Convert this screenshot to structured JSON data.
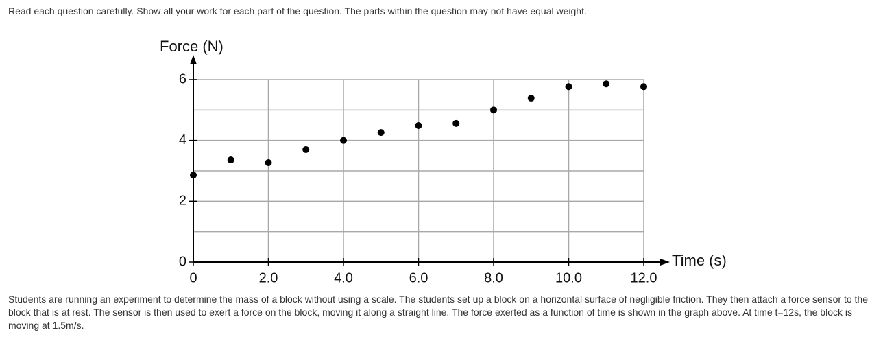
{
  "instructions": "Read each question carefully. Show all your work for each part of the question. The parts within the question may not have equal weight.",
  "chart_data": {
    "type": "scatter",
    "y_label": "Force (N)",
    "x_label": "Time (s)",
    "x": [
      0,
      1,
      2,
      3,
      4,
      5,
      6,
      7,
      8,
      9,
      10,
      11,
      12
    ],
    "values": [
      2.86,
      3.36,
      3.27,
      3.7,
      4.0,
      4.26,
      4.49,
      4.56,
      5.0,
      5.39,
      5.77,
      5.86,
      5.77
    ],
    "color": "#000000",
    "xlim": [
      0,
      12
    ],
    "ylim": [
      0,
      6
    ],
    "xticks": [
      0,
      {
        "value": 2,
        "label": "2.0"
      },
      {
        "value": 4,
        "label": "4.0"
      },
      {
        "value": 6,
        "label": "6.0"
      },
      {
        "value": 8,
        "label": "8.0"
      },
      {
        "value": 10,
        "label": "10.0"
      },
      {
        "value": 12,
        "label": "12.0"
      }
    ],
    "yticks": [
      0,
      2,
      4,
      6
    ],
    "y_minor_ticks": [
      1,
      3,
      5
    ],
    "grid": true
  },
  "paragraph": "Students are running an experiment to determine the mass of a block without using a scale. The students set up a block on a horizontal surface of negligible friction. They then attach a force sensor to the block that is at rest. The sensor is then used to exert a force on the block, moving it along a straight line. The force exerted as a function of time is shown in the graph above. At time t=12s, the block is moving at 1.5m/s."
}
